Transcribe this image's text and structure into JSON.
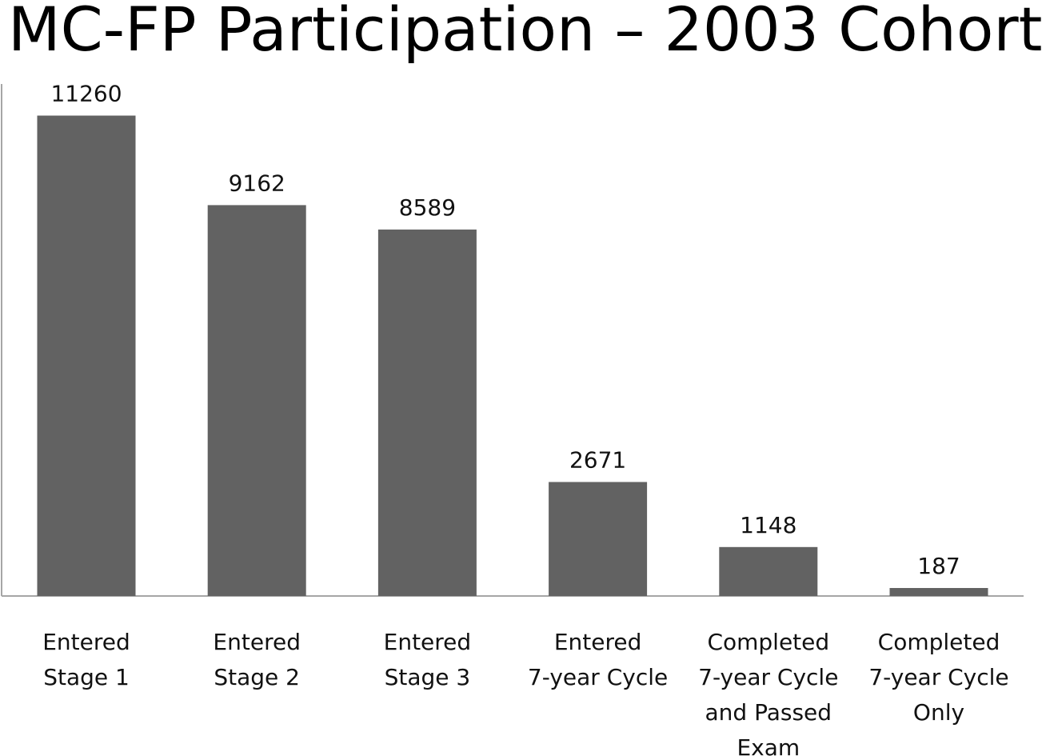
{
  "chart_data": {
    "type": "bar",
    "title": "MC-FP Participation – 2003 Cohort",
    "xlabel": "",
    "ylabel": "",
    "categories": [
      [
        "Entered",
        "Stage 1"
      ],
      [
        "Entered",
        "Stage 2"
      ],
      [
        "Entered",
        "Stage 3"
      ],
      [
        "Entered",
        "7-year Cycle"
      ],
      [
        "Completed",
        "7-year Cycle",
        "and Passed",
        "Exam"
      ],
      [
        "Completed",
        "7-year Cycle",
        "Only"
      ]
    ],
    "values": [
      11260,
      9162,
      8589,
      2671,
      1148,
      187
    ],
    "data_labels": [
      "11260",
      "9162",
      "8589",
      "2671",
      "1148",
      "187"
    ],
    "ylim": [
      0,
      12000
    ],
    "grid": false,
    "legend": "none",
    "colors": {
      "bar": "#626262",
      "axis": "#a6a6a6"
    }
  }
}
